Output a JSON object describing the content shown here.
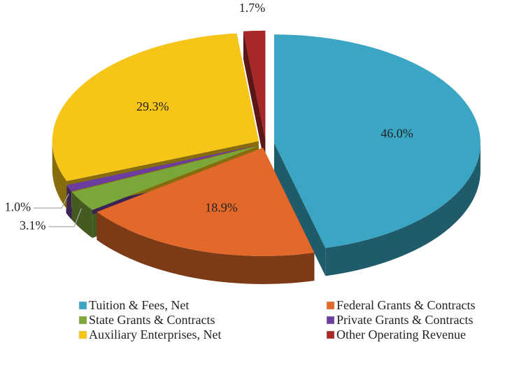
{
  "chart_data": {
    "type": "pie",
    "categories": [
      "Tuition & Fees, Net",
      "Federal Grants & Contracts",
      "State Grants & Contracts",
      "Private Grants & Contracts",
      "Auxiliary Enterprises, Net",
      "Other Operating Revenue"
    ],
    "values": [
      46.0,
      18.9,
      3.1,
      1.0,
      29.3,
      1.7
    ],
    "value_labels": [
      "46.0%",
      "18.9%",
      "3.1%",
      "1.0%",
      "29.3%",
      "1.7%"
    ],
    "colors": [
      "#3aa6c4",
      "#e2692a",
      "#7aa63a",
      "#6b3d9e",
      "#f6c518",
      "#a82828"
    ],
    "legend": "bottom"
  }
}
